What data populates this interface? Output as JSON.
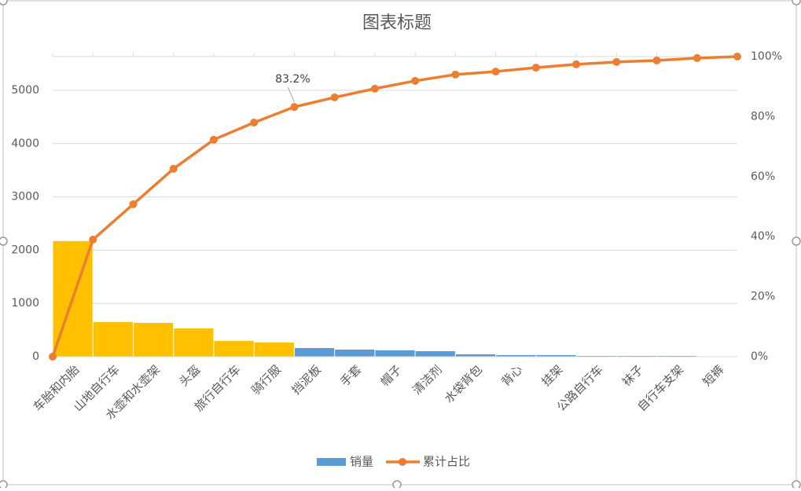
{
  "chart_data": {
    "type": "combo",
    "title": "图表标题",
    "categories": [
      "车胎和内胎",
      "山地自行车",
      "水壶和水壶架",
      "头盔",
      "旅行自行车",
      "骑行服",
      "挡泥板",
      "手套",
      "帽子",
      "清洁剂",
      "水袋背包",
      "背心",
      "挂架",
      "公路自行车",
      "袜子",
      "自行车支架",
      "短裤"
    ],
    "ylim": [
      0,
      5634
    ],
    "yticks": [
      0,
      1000,
      2000,
      3000,
      4000,
      5000
    ],
    "y2lim": [
      0,
      100
    ],
    "y2ticks": [
      {
        "value": 0,
        "label": "0%"
      },
      {
        "value": 20,
        "label": "20%"
      },
      {
        "value": 40,
        "label": "40%"
      },
      {
        "value": 60,
        "label": "60%"
      },
      {
        "value": 80,
        "label": "80%"
      },
      {
        "value": 100,
        "label": "100%"
      }
    ],
    "xlim": [
      0,
      17
    ],
    "grid": true,
    "legend": "bottom",
    "series": [
      {
        "name": "销量",
        "type": "bar",
        "color": "#5B9BD5",
        "bar_colors": [
          "#FFC000",
          "#FFC000",
          "#FFC000",
          "#FFC000",
          "#FFC000",
          "#FFC000",
          "#5B9BD5",
          "#5B9BD5",
          "#5B9BD5",
          "#5B9BD5",
          "#5B9BD5",
          "#5B9BD5",
          "#5B9BD5",
          "#5B9BD5",
          "#5B9BD5",
          "#5B9BD5",
          "#5B9BD5"
        ],
        "values": [
          2170,
          650,
          635,
          530,
          295,
          265,
          162,
          133,
          118,
          103,
          44,
          30,
          30,
          15,
          15,
          15,
          5
        ]
      },
      {
        "name": "累计占比",
        "type": "line",
        "axis": "y2",
        "color": "#ED7D31",
        "x": [
          0,
          1,
          2,
          3,
          4,
          5,
          6,
          7,
          8,
          9,
          10,
          11,
          12,
          13,
          14,
          15,
          16,
          17
        ],
        "values": [
          0,
          39.0,
          50.8,
          62.6,
          72.3,
          78.0,
          83.2,
          86.4,
          89.3,
          91.9,
          94.0,
          95.0,
          96.3,
          97.4,
          98.2,
          98.7,
          99.5,
          100
        ],
        "value_labels": [
          null,
          null,
          null,
          null,
          null,
          null,
          "83.2%",
          null,
          null,
          null,
          null,
          null,
          null,
          null,
          null,
          null,
          null,
          null
        ]
      }
    ]
  }
}
